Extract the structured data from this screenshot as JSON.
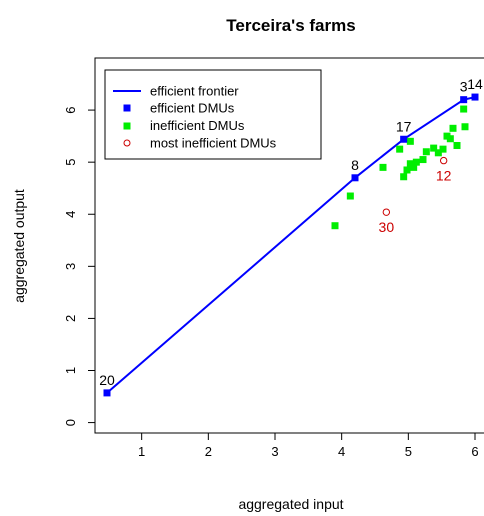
{
  "chart_data": {
    "type": "scatter",
    "title": "Terceira's farms",
    "xlabel": "aggregated input",
    "ylabel": "aggregated output",
    "xlim": [
      0.3,
      6.15
    ],
    "ylim": [
      -0.2,
      7.0
    ],
    "x_ticks": [
      "1",
      "2",
      "3",
      "4",
      "5",
      "6"
    ],
    "y_ticks": [
      "0",
      "1",
      "2",
      "3",
      "4",
      "5",
      "6"
    ],
    "grid": false,
    "legend_position": "top-left",
    "legend": [
      {
        "label": "efficient frontier",
        "marker": "line"
      },
      {
        "label": "efficient DMUs",
        "marker": "filled-square"
      },
      {
        "label": "inefficient DMUs",
        "marker": "filled-square"
      },
      {
        "label": "most inefficient DMUs",
        "marker": "open-circle"
      }
    ],
    "colors": {
      "frontier": "#0000ff",
      "efficient": "#0000ff",
      "inefficient": "#00ee00",
      "most_inefficient": "#cc0000",
      "efficient_label": "#000000",
      "most_inefficient_label": "#cc0000"
    },
    "frontier": [
      {
        "x": 0.48,
        "y": 0.57
      },
      {
        "x": 4.2,
        "y": 4.7
      },
      {
        "x": 4.93,
        "y": 5.44
      },
      {
        "x": 5.83,
        "y": 6.2
      },
      {
        "x": 6.0,
        "y": 6.25
      }
    ],
    "efficient_dmus": [
      {
        "x": 0.48,
        "y": 0.57,
        "label": "20"
      },
      {
        "x": 4.2,
        "y": 4.7,
        "label": "8"
      },
      {
        "x": 4.93,
        "y": 5.44,
        "label": "17"
      },
      {
        "x": 5.83,
        "y": 6.2,
        "label": "3"
      },
      {
        "x": 6.0,
        "y": 6.25,
        "label": "14"
      }
    ],
    "inefficient_dmus": [
      {
        "x": 3.9,
        "y": 3.78
      },
      {
        "x": 4.13,
        "y": 4.35
      },
      {
        "x": 4.62,
        "y": 4.9
      },
      {
        "x": 4.87,
        "y": 5.25
      },
      {
        "x": 4.93,
        "y": 4.72
      },
      {
        "x": 4.98,
        "y": 4.85
      },
      {
        "x": 5.03,
        "y": 5.4
      },
      {
        "x": 5.03,
        "y": 4.97
      },
      {
        "x": 5.08,
        "y": 4.9
      },
      {
        "x": 5.12,
        "y": 5.0
      },
      {
        "x": 5.22,
        "y": 5.05
      },
      {
        "x": 5.27,
        "y": 5.2
      },
      {
        "x": 5.38,
        "y": 5.27
      },
      {
        "x": 5.45,
        "y": 5.18
      },
      {
        "x": 5.52,
        "y": 5.25
      },
      {
        "x": 5.58,
        "y": 5.5
      },
      {
        "x": 5.63,
        "y": 5.45
      },
      {
        "x": 5.67,
        "y": 5.65
      },
      {
        "x": 5.73,
        "y": 5.32
      },
      {
        "x": 5.83,
        "y": 6.02
      },
      {
        "x": 5.85,
        "y": 5.68
      }
    ],
    "most_inefficient_dmus": [
      {
        "x": 4.67,
        "y": 4.04,
        "label": "30"
      },
      {
        "x": 5.53,
        "y": 5.03,
        "label": "12"
      }
    ]
  }
}
